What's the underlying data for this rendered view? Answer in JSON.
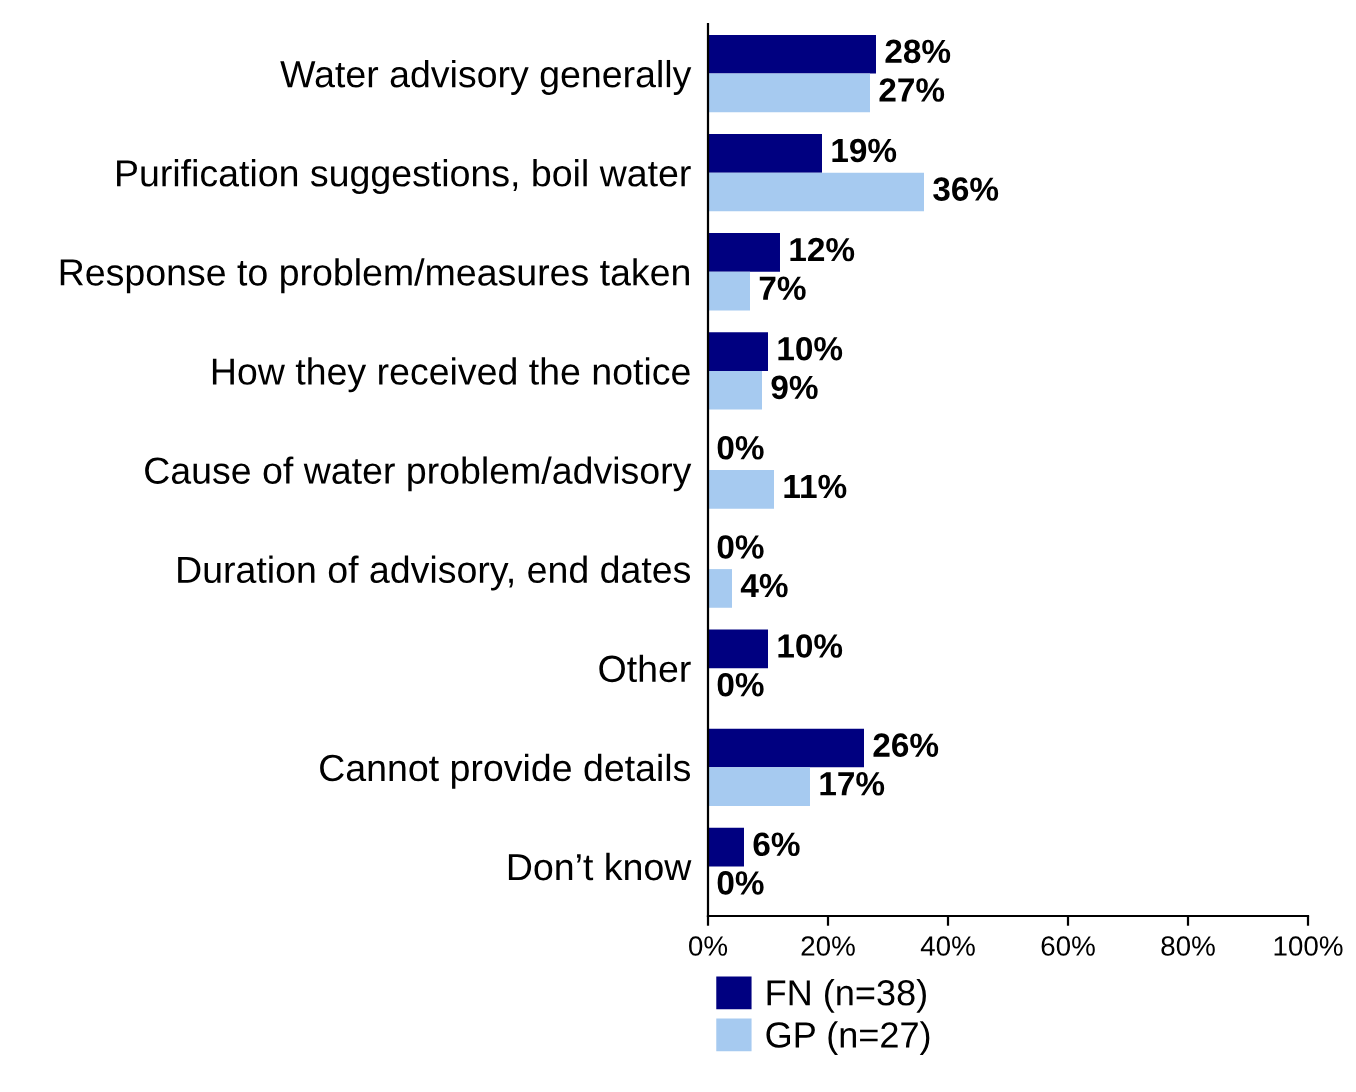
{
  "chart_data": {
    "type": "bar",
    "orientation": "horizontal",
    "categories": [
      "Water advisory generally",
      "Purification suggestions, boil water",
      "Response to problem/measures taken",
      "How they received the notice",
      "Cause of water problem/advisory",
      "Duration of advisory, end dates",
      "Other",
      "Cannot provide details",
      "Don’t know"
    ],
    "series": [
      {
        "name": "FN (n=38)",
        "color": "#000080",
        "values": [
          28,
          19,
          12,
          10,
          0,
          0,
          10,
          26,
          6
        ],
        "value_labels": [
          "28%",
          "19%",
          "12%",
          "10%",
          "0%",
          "0%",
          "10%",
          "26%",
          "6%"
        ]
      },
      {
        "name": "GP (n=27)",
        "color": "#a6caf0",
        "values": [
          27,
          36,
          7,
          9,
          11,
          4,
          0,
          17,
          0
        ],
        "value_labels": [
          "27%",
          "36%",
          "7%",
          "9%",
          "11%",
          "4%",
          "0%",
          "17%",
          "0%"
        ]
      }
    ],
    "xlim": [
      0,
      100
    ],
    "xticks": [
      {
        "value": 0,
        "label": "0%"
      },
      {
        "value": 20,
        "label": "20%"
      },
      {
        "value": 40,
        "label": "40%"
      },
      {
        "value": 60,
        "label": "60%"
      },
      {
        "value": 80,
        "label": "80%"
      },
      {
        "value": 100,
        "label": "100%"
      }
    ],
    "grid": false,
    "legend": "bottom"
  }
}
